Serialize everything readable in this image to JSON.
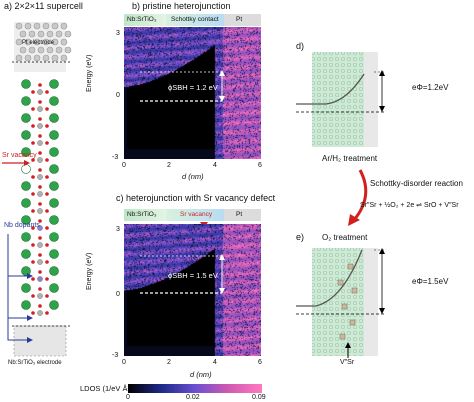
{
  "panel_a": {
    "title": "a) 2×2×11 supercell",
    "top_electrode": "Pt electrode",
    "sr_vacancy": "Sr vacancy",
    "nb_dopants": "Nb dopants",
    "bottom_electrode": "Nb:SrTiO₃ electrode"
  },
  "panel_b": {
    "title": "b) pristine heterojunction",
    "bands": [
      "Nb:SrTiO₃",
      "Schottky contact",
      "Pt"
    ],
    "barrier_label": "ϕSBH = 1.2 eV",
    "marker_zero": "0",
    "marker_eV": "eV"
  },
  "panel_c": {
    "title": "c) heterojunction with Sr vacancy defect",
    "bands": [
      "Nb:SrTiO₃",
      "Sr vacancy",
      "Pt"
    ],
    "barrier_label": "ϕSBH = 1.5 eV",
    "marker_zero": "0",
    "marker_eV": "eV"
  },
  "axes": {
    "ylabel": "Energy (eV)",
    "xlabel": "d (nm)",
    "yticks": [
      "3",
      "0",
      "-3"
    ],
    "xticks": [
      "0",
      "2",
      "4",
      "6"
    ]
  },
  "colorbar": {
    "label": "LDOS (1/eV Å³)",
    "ticks": [
      "0",
      "0.02",
      "0.09"
    ],
    "colors": [
      "#000000",
      "#1e2a8a",
      "#6a4fd0",
      "#d05ab0",
      "#ff79c2"
    ]
  },
  "panel_d": {
    "title": "d)",
    "barrier": "eΦ=1.2eV",
    "treatment": "Ar/H₂ treatment"
  },
  "reaction": {
    "title": "Schottky-disorder reaction",
    "equation": "Sr″Sr + ½O₂ + 2e ⇌ SrO + V″Sr"
  },
  "panel_e": {
    "title": "e)",
    "treatment": "O₂ treatment",
    "barrier": "eΦ=1.5eV",
    "vacancy": "V″Sr"
  },
  "chart_data": [
    {
      "type": "heatmap",
      "title": "b) pristine heterojunction",
      "xlabel": "d (nm)",
      "ylabel": "Energy (eV)",
      "xlim": [
        0,
        6
      ],
      "ylim": [
        -3,
        3
      ],
      "annotation": "ϕSBH = 1.2 eV",
      "regions": [
        "Nb:SrTiO₃",
        "Schottky contact",
        "Pt"
      ]
    },
    {
      "type": "heatmap",
      "title": "c) heterojunction with Sr vacancy defect",
      "xlabel": "d (nm)",
      "ylabel": "Energy (eV)",
      "xlim": [
        0,
        6
      ],
      "ylim": [
        -3,
        3
      ],
      "annotation": "ϕSBH = 1.5 eV",
      "regions": [
        "Nb:SrTiO₃",
        "Sr vacancy",
        "Pt"
      ]
    }
  ]
}
